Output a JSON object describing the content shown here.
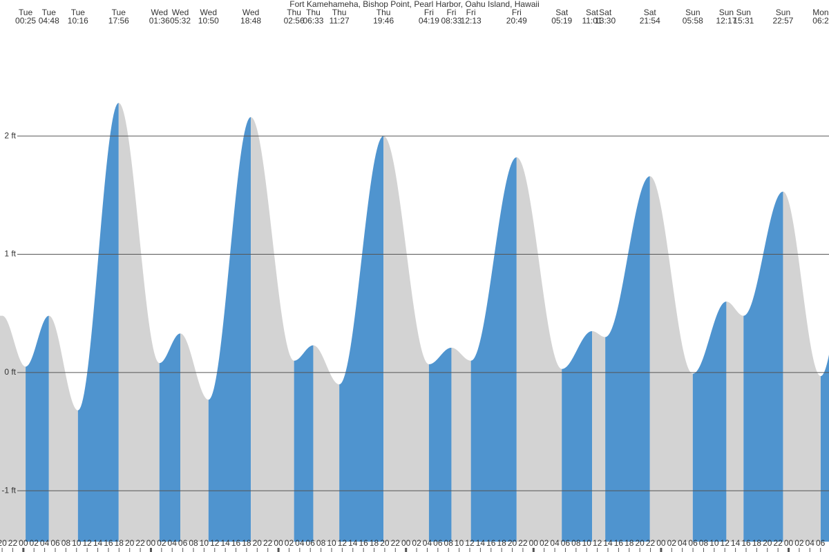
{
  "chart_data": {
    "type": "area",
    "title": "Fort Kamehameha, Bishop Point, Pearl Harbor, Oahu Island, Hawaii",
    "extremes": [
      {
        "day": "Tue",
        "time": "00:25",
        "height": 0.05
      },
      {
        "day": "Tue",
        "time": "04:48",
        "height": 0.48
      },
      {
        "day": "Tue",
        "time": "10:16",
        "height": -0.32
      },
      {
        "day": "Tue",
        "time": "17:56",
        "height": 2.28
      },
      {
        "day": "Wed",
        "time": "01:36",
        "height": 0.08
      },
      {
        "day": "Wed",
        "time": "05:32",
        "height": 0.33
      },
      {
        "day": "Wed",
        "time": "10:50",
        "height": -0.23
      },
      {
        "day": "Wed",
        "time": "18:48",
        "height": 2.16
      },
      {
        "day": "Thu",
        "time": "02:56",
        "height": 0.1
      },
      {
        "day": "Thu",
        "time": "06:33",
        "height": 0.23
      },
      {
        "day": "Thu",
        "time": "11:27",
        "height": -0.1
      },
      {
        "day": "Thu",
        "time": "19:46",
        "height": 2.0
      },
      {
        "day": "Fri",
        "time": "04:19",
        "height": 0.07
      },
      {
        "day": "Fri",
        "time": "08:33",
        "height": 0.21
      },
      {
        "day": "Fri",
        "time": "12:13",
        "height": 0.1
      },
      {
        "day": "Fri",
        "time": "20:49",
        "height": 1.82
      },
      {
        "day": "Sat",
        "time": "05:19",
        "height": 0.03
      },
      {
        "day": "Sat",
        "time": "11:01",
        "height": 0.35
      },
      {
        "day": "Sat",
        "time": "13:30",
        "height": 0.3
      },
      {
        "day": "Sat",
        "time": "21:54",
        "height": 1.66
      },
      {
        "day": "Sun",
        "time": "05:58",
        "height": -0.01
      },
      {
        "day": "Sun",
        "time": "12:17",
        "height": 0.6
      },
      {
        "day": "Sun",
        "time": "15:31",
        "height": 0.48
      },
      {
        "day": "Sun",
        "time": "22:57",
        "height": 1.53
      },
      {
        "day": "Mon",
        "time": "06:2",
        "height": -0.03
      }
    ],
    "ylim": [
      -1.43,
      3.15
    ],
    "yticks": [
      {
        "value": 2,
        "label": "2 ft"
      },
      {
        "value": 1,
        "label": "1 ft"
      },
      {
        "value": 0,
        "label": "0 ft"
      },
      {
        "value": -1,
        "label": "-1 ft"
      }
    ],
    "xlim": [
      -4.4,
      151.6
    ],
    "xticks": [
      {
        "value": -4,
        "label": "20"
      },
      {
        "value": -2,
        "label": "22"
      },
      {
        "value": 0,
        "label": "00"
      },
      {
        "value": 2,
        "label": "02"
      },
      {
        "value": 4,
        "label": "04"
      },
      {
        "value": 6,
        "label": "06"
      },
      {
        "value": 8,
        "label": "08"
      },
      {
        "value": 10,
        "label": "10"
      },
      {
        "value": 12,
        "label": "12"
      },
      {
        "value": 14,
        "label": "14"
      },
      {
        "value": 16,
        "label": "16"
      },
      {
        "value": 18,
        "label": "18"
      },
      {
        "value": 20,
        "label": "20"
      },
      {
        "value": 22,
        "label": "22"
      },
      {
        "value": 24,
        "label": "00"
      },
      {
        "value": 26,
        "label": "02"
      },
      {
        "value": 28,
        "label": "04"
      },
      {
        "value": 30,
        "label": "06"
      },
      {
        "value": 32,
        "label": "08"
      },
      {
        "value": 34,
        "label": "10"
      },
      {
        "value": 36,
        "label": "12"
      },
      {
        "value": 38,
        "label": "14"
      },
      {
        "value": 40,
        "label": "16"
      },
      {
        "value": 42,
        "label": "18"
      },
      {
        "value": 44,
        "label": "20"
      },
      {
        "value": 46,
        "label": "22"
      },
      {
        "value": 48,
        "label": "00"
      },
      {
        "value": 50,
        "label": "02"
      },
      {
        "value": 52,
        "label": "04"
      },
      {
        "value": 54,
        "label": "06"
      },
      {
        "value": 56,
        "label": "08"
      },
      {
        "value": 58,
        "label": "10"
      },
      {
        "value": 60,
        "label": "12"
      },
      {
        "value": 62,
        "label": "14"
      },
      {
        "value": 64,
        "label": "16"
      },
      {
        "value": 66,
        "label": "18"
      },
      {
        "value": 68,
        "label": "20"
      },
      {
        "value": 70,
        "label": "22"
      },
      {
        "value": 72,
        "label": "00"
      },
      {
        "value": 74,
        "label": "02"
      },
      {
        "value": 76,
        "label": "04"
      },
      {
        "value": 78,
        "label": "06"
      },
      {
        "value": 80,
        "label": "08"
      },
      {
        "value": 82,
        "label": "10"
      },
      {
        "value": 84,
        "label": "12"
      },
      {
        "value": 86,
        "label": "14"
      },
      {
        "value": 88,
        "label": "16"
      },
      {
        "value": 90,
        "label": "18"
      },
      {
        "value": 92,
        "label": "20"
      },
      {
        "value": 94,
        "label": "22"
      },
      {
        "value": 96,
        "label": "00"
      },
      {
        "value": 98,
        "label": "02"
      },
      {
        "value": 100,
        "label": "04"
      },
      {
        "value": 102,
        "label": "06"
      },
      {
        "value": 104,
        "label": "08"
      },
      {
        "value": 106,
        "label": "10"
      },
      {
        "value": 108,
        "label": "12"
      },
      {
        "value": 110,
        "label": "14"
      },
      {
        "value": 112,
        "label": "16"
      },
      {
        "value": 114,
        "label": "18"
      },
      {
        "value": 116,
        "label": "20"
      },
      {
        "value": 118,
        "label": "22"
      },
      {
        "value": 120,
        "label": "00"
      },
      {
        "value": 122,
        "label": "02"
      },
      {
        "value": 124,
        "label": "04"
      },
      {
        "value": 126,
        "label": "06"
      },
      {
        "value": 128,
        "label": "08"
      },
      {
        "value": 130,
        "label": "10"
      },
      {
        "value": 132,
        "label": "12"
      },
      {
        "value": 134,
        "label": "14"
      },
      {
        "value": 136,
        "label": "16"
      },
      {
        "value": 138,
        "label": "18"
      },
      {
        "value": 140,
        "label": "20"
      },
      {
        "value": 142,
        "label": "22"
      },
      {
        "value": 144,
        "label": "00"
      },
      {
        "value": 146,
        "label": "02"
      },
      {
        "value": 148,
        "label": "04"
      },
      {
        "value": 150,
        "label": "06"
      }
    ],
    "grid": true,
    "colors": {
      "rising": "#4f94cf",
      "falling": "#d3d3d3",
      "grid": "#555555"
    }
  }
}
